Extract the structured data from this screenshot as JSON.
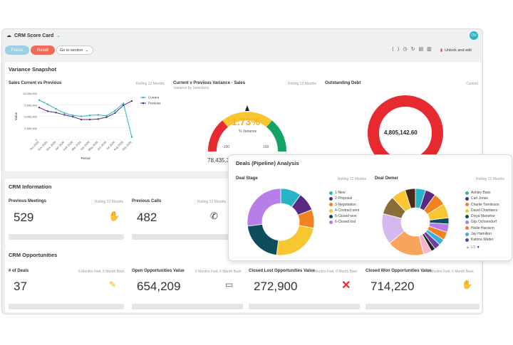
{
  "app": {
    "title": "CRM Score Card",
    "avatar": "OV"
  },
  "toolbar": {
    "focus": "Focus",
    "reset": "Reset",
    "goto": "Go to section",
    "unlock": "Unlock and edit"
  },
  "variance": {
    "title": "Variance Snapshot",
    "sales": {
      "title": "Sales Current vs Previous",
      "period": "Rolling 12 Months"
    },
    "var": {
      "title": "Current v Previous Variance - Sales",
      "sub": "Variance by Selections",
      "period": "Rolling 12 Months",
      "value": "1.73%",
      "unit": "% Variance",
      "left": "-100",
      "right": "100",
      "bottom": "78,435,3"
    },
    "debt": {
      "title": "Outstanding Debt",
      "period": "Custom",
      "value": "4,805,142.60"
    }
  },
  "chart_data": {
    "type": "line",
    "x": [
      "Oct 2025",
      "Nov 2025",
      "Dec 2025",
      "Jan 2026",
      "Feb 2026",
      "Mar 2026",
      "Apr 2026",
      "May 2026",
      "Jun 2026",
      "Jul 2026",
      "Aug 2026",
      "Sep 2026"
    ],
    "series": [
      {
        "name": "Current",
        "color": "#26b5c7",
        "values": [
          8500000,
          7600000,
          6600000,
          5700000,
          5200000,
          5000000,
          5200000,
          5300000,
          5100000,
          6200000,
          7800000,
          500000
        ]
      },
      {
        "name": "Previous",
        "color": "#5a2a82",
        "values": [
          6900000,
          6100000,
          5800000,
          5300000,
          4900000,
          4300000,
          4300000,
          4400000,
          4800000,
          5700000,
          7400000,
          8300000
        ]
      }
    ],
    "yticks": [
      "10,000,000",
      "7,500,000",
      "5,000,000",
      "2,500,000",
      "0"
    ],
    "ylim": [
      0,
      10000000
    ],
    "xlabel": "Period",
    "ylabel": "Value"
  },
  "crm_info": {
    "title": "CRM Information",
    "meetings": {
      "label": "Previous Meetings",
      "period": "Rolling 12 Months",
      "value": "529"
    },
    "calls": {
      "label": "Previous Calls",
      "period": "Rolling 12 Months",
      "value": "482"
    }
  },
  "crm_opps": {
    "title": "CRM Opportunities",
    "deals": {
      "label": "# of Deals",
      "period": "6 Months Fwd, 6 Month Back",
      "value": "37"
    },
    "open": {
      "label": "Open Opportunities Value",
      "period": "6 Months Fwd, 6 Month Back",
      "value": "654,209"
    },
    "lost": {
      "label": "Closed Lost Opportunities Value",
      "period": "6 Months Fwd, 6 Month Back",
      "value": "272,900"
    },
    "won": {
      "label": "Closed Won Opportunities Value",
      "period": "6 Months Fwd, 6 Month Back",
      "value": "714,220"
    }
  },
  "pipeline": {
    "title": "Deals (Pipeline) Analysis",
    "stage": {
      "title": "Deal Stage",
      "period": "Rolling 12 Months",
      "items": [
        {
          "label": "1-New",
          "color": "#26b5c7",
          "value": 10
        },
        {
          "label": "2-Proposal",
          "color": "#5a2a82",
          "value": 9
        },
        {
          "label": "3-Negotiation",
          "color": "#f28220",
          "value": 9
        },
        {
          "label": "4-Contract sent",
          "color": "#f8c630",
          "value": 24
        },
        {
          "label": "5-Closed won",
          "color": "#0d4d5c",
          "value": 21
        },
        {
          "label": "6-Closed lost",
          "color": "#b77de8",
          "value": 27
        }
      ]
    },
    "owner": {
      "title": "Deal Owner",
      "period": "Rolling 12 Months",
      "paging": "1/3",
      "items": [
        {
          "label": "Ashley Bass",
          "color": "#26b5c7",
          "value": 5
        },
        {
          "label": "Carl Jones",
          "color": "#5a2a82",
          "value": 5
        },
        {
          "label": "Charlie Tomlinson",
          "color": "#f28220",
          "value": 6
        },
        {
          "label": "David Chambers",
          "color": "#f8c630",
          "value": 7
        },
        {
          "label": "Divya Manohar",
          "color": "#0d4d5c",
          "value": 3
        },
        {
          "label": "Gijs Ochsendorf",
          "color": "#b77de8",
          "value": 4
        },
        {
          "label": "Hollie Harrison",
          "color": "#f28220",
          "value": 4
        },
        {
          "label": "Jay Hamilton",
          "color": "#3ab0e0",
          "value": 3
        },
        {
          "label": "Katrina Walter",
          "color": "#6c3fa0",
          "value": 3
        },
        {
          "label": "",
          "color": "#222222",
          "value": 2
        },
        {
          "label": "",
          "color": "#f5b7d0",
          "value": 4
        },
        {
          "label": "",
          "color": "#f8a55c",
          "value": 18
        },
        {
          "label": "",
          "color": "#d4b8f0",
          "value": 15
        },
        {
          "label": "",
          "color": "#8a6d3b",
          "value": 9
        },
        {
          "label": "",
          "color": "#f8c630",
          "value": 7
        },
        {
          "label": "",
          "color": "#4a2a1a",
          "value": 5
        }
      ]
    }
  }
}
